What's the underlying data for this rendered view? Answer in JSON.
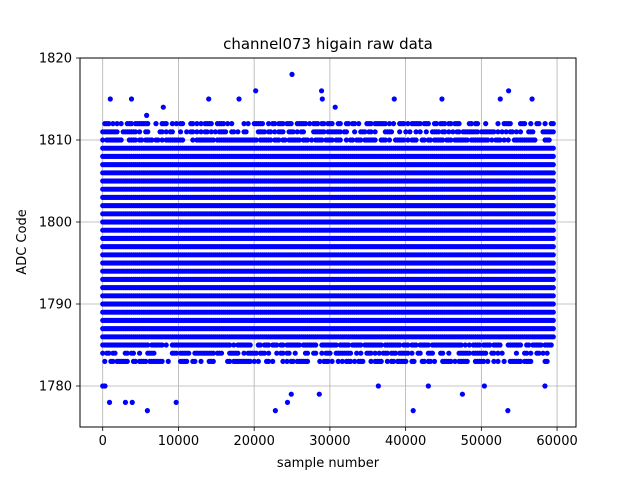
{
  "chart_data": {
    "type": "scatter",
    "title": "channel073 higain raw data",
    "xlabel": "sample number",
    "ylabel": "ADC Code",
    "xlim": [
      -3000,
      62500
    ],
    "ylim": [
      1775,
      1820
    ],
    "xticks": [
      0,
      10000,
      20000,
      30000,
      40000,
      50000,
      60000
    ],
    "xtick_labels": [
      "0",
      "10000",
      "20000",
      "30000",
      "40000",
      "50000",
      "60000"
    ],
    "yticks": [
      1780,
      1790,
      1800,
      1810,
      1820
    ],
    "ytick_labels": [
      "1780",
      "1790",
      "1800",
      "1810",
      "1820"
    ],
    "grid": true,
    "marker_color": "#0000ff",
    "series": [
      {
        "x_range": [
          0,
          59500
        ],
        "dense_levels": [
          1783,
          1784,
          1785,
          1786,
          1787,
          1788,
          1789,
          1790,
          1791,
          1792,
          1793,
          1794,
          1795,
          1796,
          1797,
          1798,
          1799,
          1800,
          1801,
          1802,
          1803,
          1804,
          1805,
          1806,
          1807,
          1808,
          1809,
          1810,
          1811,
          1812
        ],
        "outliers": [
          {
            "x": 0,
            "y": 1780
          },
          {
            "x": 300,
            "y": 1780
          },
          {
            "x": 900,
            "y": 1778
          },
          {
            "x": 1000,
            "y": 1815
          },
          {
            "x": 3000,
            "y": 1778
          },
          {
            "x": 3900,
            "y": 1778
          },
          {
            "x": 3800,
            "y": 1815
          },
          {
            "x": 5900,
            "y": 1777
          },
          {
            "x": 5800,
            "y": 1813
          },
          {
            "x": 9700,
            "y": 1778
          },
          {
            "x": 8000,
            "y": 1814
          },
          {
            "x": 14000,
            "y": 1815
          },
          {
            "x": 18000,
            "y": 1815
          },
          {
            "x": 20200,
            "y": 1816
          },
          {
            "x": 22800,
            "y": 1777
          },
          {
            "x": 24400,
            "y": 1778
          },
          {
            "x": 24900,
            "y": 1779
          },
          {
            "x": 25000,
            "y": 1818
          },
          {
            "x": 28600,
            "y": 1779
          },
          {
            "x": 28900,
            "y": 1816
          },
          {
            "x": 29000,
            "y": 1815
          },
          {
            "x": 30700,
            "y": 1814
          },
          {
            "x": 36400,
            "y": 1780
          },
          {
            "x": 38500,
            "y": 1815
          },
          {
            "x": 41000,
            "y": 1777
          },
          {
            "x": 43000,
            "y": 1780
          },
          {
            "x": 44800,
            "y": 1815
          },
          {
            "x": 47500,
            "y": 1779
          },
          {
            "x": 50400,
            "y": 1780
          },
          {
            "x": 52500,
            "y": 1815
          },
          {
            "x": 53500,
            "y": 1777
          },
          {
            "x": 53600,
            "y": 1816
          },
          {
            "x": 56700,
            "y": 1815
          },
          {
            "x": 58400,
            "y": 1780
          }
        ]
      }
    ]
  }
}
